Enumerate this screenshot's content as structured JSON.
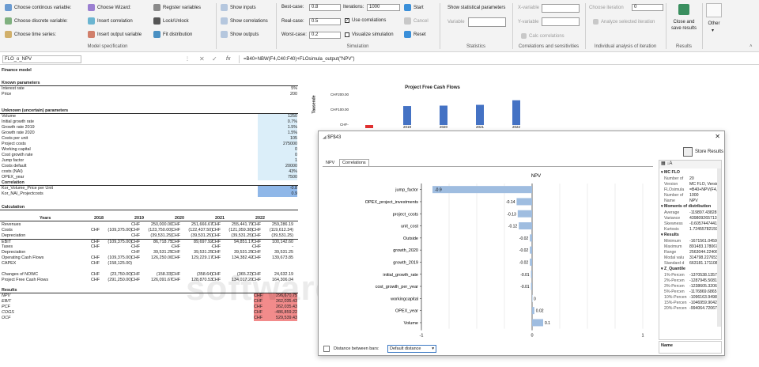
{
  "ribbon": {
    "model_spec": {
      "group_label": "Model specification",
      "items": [
        {
          "label": "Choose continous variable:",
          "icon": "continuous-variable-icon"
        },
        {
          "label": "Choose discrete variable:",
          "icon": "discrete-variable-icon"
        },
        {
          "label": "Choose time series:",
          "icon": "time-series-icon"
        },
        {
          "label": "Choose Wizard:",
          "icon": "wizard-icon"
        },
        {
          "label": "Insert correlation",
          "icon": "correlation-icon"
        },
        {
          "label": "Insert output variable",
          "icon": "output-variable-icon"
        },
        {
          "label": "Register variables",
          "icon": "register-icon"
        },
        {
          "label": "Lock/Unlock",
          "icon": "lock-icon"
        },
        {
          "label": "Fit distribution",
          "icon": "fit-icon"
        }
      ]
    },
    "show": {
      "items": [
        {
          "label": "Show inputs"
        },
        {
          "label": "Show correlations"
        },
        {
          "label": "Show outputs"
        }
      ]
    },
    "simulation": {
      "group_label": "Simulation",
      "best_case_label": "Best-case:",
      "best_case_value": "0.8",
      "real_case_label": "Real-case:",
      "real_case_value": "0.5",
      "worst_case_label": "Worst-case:",
      "worst_case_value": "0.2",
      "iterations_label": "Iterations:",
      "iterations_value": "1000",
      "use_correlations": "Use correlations",
      "visualize_simulation": "Visualize simulation",
      "start": "Start",
      "cancel": "Cancel",
      "reset": "Reset"
    },
    "statistics": {
      "group_label": "Statistics",
      "show_stat_params": "Show statistical parameters",
      "variable_label": "Variable"
    },
    "correlations": {
      "group_label": "Correlations and sensitivities",
      "x_variable": "X-variable",
      "y_variable": "Y-variable",
      "calc_correlations": "Calc correlations"
    },
    "individual": {
      "group_label": "Individual analysis of iteration",
      "choose_iteration": "Choose iteration",
      "iteration_value": "0",
      "analyze": "Analyze selected iteration"
    },
    "results": {
      "group_label": "Results",
      "close_save": "Close and save results"
    },
    "other": {
      "label": "Other"
    }
  },
  "formula_bar": {
    "name_box": "FLO_o_NPV",
    "fx": "fx",
    "formula": "=B40+NBW(F4,C40:F40)+FLOsimula_output(\"NPV\")"
  },
  "sheet": {
    "title": "Finance model",
    "known_header": "Known parameters",
    "known": [
      {
        "label": "Interest rate",
        "value": "5%"
      },
      {
        "label": "Price",
        "value": "200"
      }
    ],
    "unknown_header": "Unknown (uncertain) parameters",
    "unknown": [
      {
        "label": "Volume",
        "value": "1250"
      },
      {
        "label": "Initial growth rate",
        "value": "0.7%"
      },
      {
        "label": "Growth rate 2019",
        "value": "1.5%"
      },
      {
        "label": "Growth rate 2020",
        "value": "1.5%"
      },
      {
        "label": "Costs per unit",
        "value": "105"
      },
      {
        "label": "Project costs",
        "value": "275000"
      },
      {
        "label": "Working capital",
        "value": "0"
      },
      {
        "label": "Cost growth rate",
        "value": "0"
      },
      {
        "label": "Jump factor",
        "value": "1"
      },
      {
        "label": "Costs default",
        "value": "20000"
      },
      {
        "label": "costs (NAI)",
        "value": "43%"
      },
      {
        "label": "OPEX_year",
        "value": "7500"
      }
    ],
    "correlation_header": "Correlation",
    "correlation": [
      {
        "label": "Kor_Volume_Price per Unit",
        "value": "-0.8"
      },
      {
        "label": "Kor_NAI_Projectcosts",
        "value": "0.9"
      }
    ],
    "calc_header": "Calculation",
    "years_label": "Years",
    "years": [
      "2018",
      "2019",
      "2020",
      "2021",
      "2022"
    ],
    "currency": "CHF",
    "calc_rows": [
      {
        "label": "Revenues",
        "vals": [
          "",
          "250,000.00",
          "251,666.67",
          "255,441.79",
          "259,286.19"
        ]
      },
      {
        "label": "Costs",
        "vals": [
          "(109,375.00)",
          "(123,750.00)",
          "(122,437.50)",
          "(121,059.38)",
          "(119,612.34)"
        ]
      },
      {
        "label": "Depreciation",
        "vals": [
          "",
          "(39,531.25)",
          "(39,531.25)",
          "(39,531.25)",
          "(39,531.25)"
        ]
      },
      {
        "label": "EBIT",
        "vals": [
          "(109,375.00)",
          "86,718.75",
          "89,697.92",
          "94,851.17",
          "100,142.60"
        ]
      },
      {
        "label": "Taxes",
        "vals": [
          "-",
          "-",
          "-",
          "-",
          "-"
        ]
      },
      {
        "label": "Depreciation",
        "vals": [
          "",
          "39,531.25",
          "39,531.25",
          "39,531.25",
          "39,531.25"
        ]
      },
      {
        "label": "Operating Cash Flows",
        "vals": [
          "(109,375.00)",
          "126,250.00",
          "129,229.17",
          "134,382.42",
          "139,673.85"
        ]
      },
      {
        "label": "CAPEX",
        "vals": [
          "(158,125.00)",
          "",
          "",
          "",
          ""
        ]
      },
      {
        "label": "",
        "vals": [
          "",
          "",
          "",
          "",
          ""
        ]
      },
      {
        "label": "Changes of NOWC",
        "vals": [
          "(23,750.00)",
          "(158.33)",
          "(358.64)",
          "(365.22)",
          "24,632.19"
        ]
      },
      {
        "label": "Project Free Cash Flows",
        "vals": [
          "(291,250.00)",
          "126,091.67",
          "128,870.53",
          "134,017.20",
          "164,306.04"
        ]
      }
    ],
    "results_header": "Results",
    "results": [
      {
        "label": "NPV",
        "value": "296,670.75"
      },
      {
        "label": "EBIT",
        "value": "262,035.43"
      },
      {
        "label": "PCF",
        "value": "262,035.43"
      },
      {
        "label": "COGS",
        "value": "-486,859.22"
      },
      {
        "label": "OCF",
        "value": "529,539.43"
      }
    ]
  },
  "bg_chart": {
    "title": "Project Free Cash Flows",
    "ylabel": "Tausende",
    "ticks": [
      "CHF200.00",
      "CHF100.00",
      "CHF-"
    ]
  },
  "dialog": {
    "title": "$F$43",
    "store_results": "Store Results",
    "tabs": [
      "NPV",
      "Correlations"
    ],
    "distance_label": "Distance between bars:",
    "distance_value": "Default distance",
    "props_title": "MC FLO",
    "props": [
      {
        "k": "Number of",
        "v": "20"
      },
      {
        "k": "Version",
        "v": "MC FLO, Version"
      },
      {
        "k": "FLOsimula",
        "v": "=B40+NPV(F4,C"
      },
      {
        "k": "Number of",
        "v": "1000"
      },
      {
        "k": "Name",
        "v": "NPV"
      }
    ],
    "moments_title": "Moments of distribution",
    "moments": [
      {
        "k": "Average",
        "v": "-119897.43828"
      },
      {
        "k": "Variance",
        "v": "439809265713"
      },
      {
        "k": "Skewness",
        "v": "-0.6057447441"
      },
      {
        "k": "Kurtosis",
        "v": "1.72455782159"
      }
    ],
    "results_title": "Results",
    "results": [
      {
        "k": "Minimum",
        "v": "-1671561.04595"
      },
      {
        "k": "Maximum",
        "v": "891483.178067"
      },
      {
        "k": "Range",
        "v": "2563044.22406"
      },
      {
        "k": "Modal valu",
        "v": "314798.227653"
      },
      {
        "k": "Standard d",
        "v": "663181.171108"
      }
    ],
    "quantile_title": "Z_Quantile",
    "quantiles": [
      {
        "k": "1%-Percen",
        "v": "-1370538.1357"
      },
      {
        "k": "2%-Percen",
        "v": "-1287945.5081"
      },
      {
        "k": "3%-Percen",
        "v": "-1238605.3206"
      },
      {
        "k": "5%-Percen",
        "v": "-1176869.6865"
      },
      {
        "k": "10%-Percen",
        "v": "-1096163.9498"
      },
      {
        "k": "15%-Percen",
        "v": "-1046959.9042"
      },
      {
        "k": "20%-Percen",
        "v": "-994064.72067"
      }
    ],
    "name_label": "Name"
  },
  "watermark": "softwaresuggest.com",
  "chart_data": [
    {
      "type": "bar",
      "title": "NPV",
      "orientation": "horizontal",
      "categories": [
        "jump_factor",
        "OPEX_project_investments",
        "project_costs",
        "unit_cost",
        "Outside",
        "growth_2020",
        "growth_2019",
        "initial_growth_rate",
        "cost_growth_per_year",
        "workingcapital",
        "OPEX_year",
        "Volume"
      ],
      "values": [
        -0.9,
        -0.14,
        -0.13,
        -0.12,
        -0.02,
        -0.02,
        -0.02,
        -0.01,
        -0.01,
        0,
        0.02,
        0.1
      ],
      "labels": [
        "-0.9",
        "-0.14",
        "-0.13",
        "-0.12",
        "-0.02",
        "-0.02",
        "-0.02",
        "-0.01",
        "-0.01",
        "0",
        "0.02",
        "0.1"
      ],
      "xlim": [
        -1,
        1
      ],
      "xticks": [
        "-1",
        "0",
        "1"
      ],
      "color": "#9fbde0"
    },
    {
      "type": "bar",
      "title": "Project Free Cash Flows",
      "ylabel": "Tausende",
      "categories": [
        "2019",
        "2020",
        "2021",
        "2022"
      ],
      "values": [
        126.09,
        128.87,
        134.02,
        164.31
      ],
      "color": "#4472c4"
    }
  ]
}
